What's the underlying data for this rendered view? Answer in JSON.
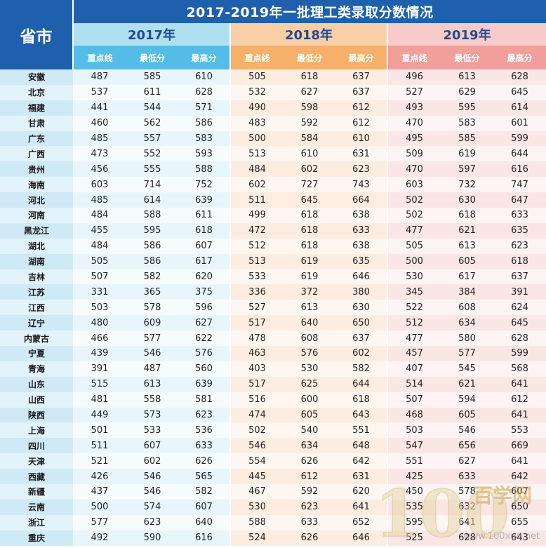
{
  "title": "2017-2019年一批理工类录取分数情况",
  "province_header": "省市",
  "years": [
    "2017年",
    "2018年",
    "2019年"
  ],
  "sub_headers": [
    "重点线",
    "最低分",
    "最高分"
  ],
  "rows": [
    {
      "province": "安徽",
      "v": [
        "487",
        "585",
        "610",
        "505",
        "618",
        "637",
        "496",
        "613",
        "628"
      ]
    },
    {
      "province": "北京",
      "v": [
        "537",
        "611",
        "628",
        "532",
        "627",
        "637",
        "527",
        "629",
        "645"
      ]
    },
    {
      "province": "福建",
      "v": [
        "441",
        "544",
        "571",
        "490",
        "598",
        "612",
        "493",
        "595",
        "614"
      ]
    },
    {
      "province": "甘肃",
      "v": [
        "460",
        "562",
        "586",
        "483",
        "592",
        "612",
        "470",
        "583",
        "601"
      ]
    },
    {
      "province": "广东",
      "v": [
        "485",
        "557",
        "583",
        "500",
        "584",
        "610",
        "495",
        "585",
        "599"
      ]
    },
    {
      "province": "广西",
      "v": [
        "473",
        "552",
        "593",
        "513",
        "610",
        "631",
        "509",
        "619",
        "644"
      ]
    },
    {
      "province": "贵州",
      "v": [
        "456",
        "555",
        "588",
        "484",
        "602",
        "623",
        "470",
        "597",
        "616"
      ]
    },
    {
      "province": "海南",
      "v": [
        "603",
        "714",
        "752",
        "602",
        "727",
        "743",
        "603",
        "732",
        "747"
      ]
    },
    {
      "province": "河北",
      "v": [
        "485",
        "614",
        "639",
        "511",
        "645",
        "664",
        "502",
        "630",
        "647"
      ]
    },
    {
      "province": "河南",
      "v": [
        "484",
        "588",
        "611",
        "499",
        "618",
        "638",
        "502",
        "618",
        "633"
      ]
    },
    {
      "province": "黑龙江",
      "v": [
        "455",
        "595",
        "618",
        "472",
        "618",
        "633",
        "477",
        "621",
        "635"
      ]
    },
    {
      "province": "湖北",
      "v": [
        "484",
        "586",
        "607",
        "512",
        "618",
        "638",
        "505",
        "613",
        "623"
      ]
    },
    {
      "province": "湖南",
      "v": [
        "505",
        "586",
        "617",
        "513",
        "619",
        "635",
        "500",
        "605",
        "618"
      ]
    },
    {
      "province": "吉林",
      "v": [
        "507",
        "582",
        "620",
        "533",
        "619",
        "646",
        "530",
        "617",
        "637"
      ]
    },
    {
      "province": "江苏",
      "v": [
        "331",
        "365",
        "375",
        "336",
        "372",
        "380",
        "345",
        "384",
        "391"
      ]
    },
    {
      "province": "江西",
      "v": [
        "503",
        "578",
        "596",
        "527",
        "613",
        "630",
        "522",
        "608",
        "624"
      ]
    },
    {
      "province": "辽宁",
      "v": [
        "480",
        "609",
        "627",
        "517",
        "640",
        "650",
        "512",
        "634",
        "645"
      ]
    },
    {
      "province": "内蒙古",
      "v": [
        "466",
        "577",
        "622",
        "478",
        "608",
        "637",
        "477",
        "580",
        "628"
      ]
    },
    {
      "province": "宁夏",
      "v": [
        "439",
        "546",
        "576",
        "463",
        "576",
        "602",
        "457",
        "577",
        "599"
      ]
    },
    {
      "province": "青海",
      "v": [
        "391",
        "487",
        "560",
        "403",
        "530",
        "582",
        "407",
        "545",
        "568"
      ]
    },
    {
      "province": "山东",
      "v": [
        "515",
        "613",
        "639",
        "517",
        "625",
        "644",
        "514",
        "621",
        "641"
      ]
    },
    {
      "province": "山西",
      "v": [
        "481",
        "558",
        "581",
        "516",
        "600",
        "618",
        "507",
        "594",
        "612"
      ]
    },
    {
      "province": "陕西",
      "v": [
        "449",
        "573",
        "623",
        "474",
        "605",
        "643",
        "468",
        "605",
        "641"
      ]
    },
    {
      "province": "上海",
      "v": [
        "501",
        "533",
        "536",
        "502",
        "540",
        "551",
        "503",
        "546",
        "553"
      ]
    },
    {
      "province": "四川",
      "v": [
        "511",
        "607",
        "633",
        "546",
        "634",
        "648",
        "547",
        "656",
        "669"
      ]
    },
    {
      "province": "天津",
      "v": [
        "521",
        "602",
        "626",
        "554",
        "626",
        "642",
        "551",
        "627",
        "641"
      ]
    },
    {
      "province": "西藏",
      "v": [
        "426",
        "546",
        "565",
        "445",
        "612",
        "631",
        "425",
        "633",
        "642"
      ]
    },
    {
      "province": "新疆",
      "v": [
        "437",
        "546",
        "582",
        "467",
        "592",
        "620",
        "450",
        "578",
        "607"
      ]
    },
    {
      "province": "云南",
      "v": [
        "500",
        "574",
        "607",
        "530",
        "623",
        "641",
        "535",
        "632",
        "650"
      ]
    },
    {
      "province": "浙江",
      "v": [
        "577",
        "623",
        "640",
        "588",
        "633",
        "652",
        "595",
        "641",
        "655"
      ]
    },
    {
      "province": "重庆",
      "v": [
        "492",
        "590",
        "616",
        "524",
        "626",
        "646",
        "525",
        "628",
        "643"
      ]
    }
  ],
  "watermark": {
    "digits": "100",
    "name": "百学网",
    "url": "www.100xue.net"
  }
}
